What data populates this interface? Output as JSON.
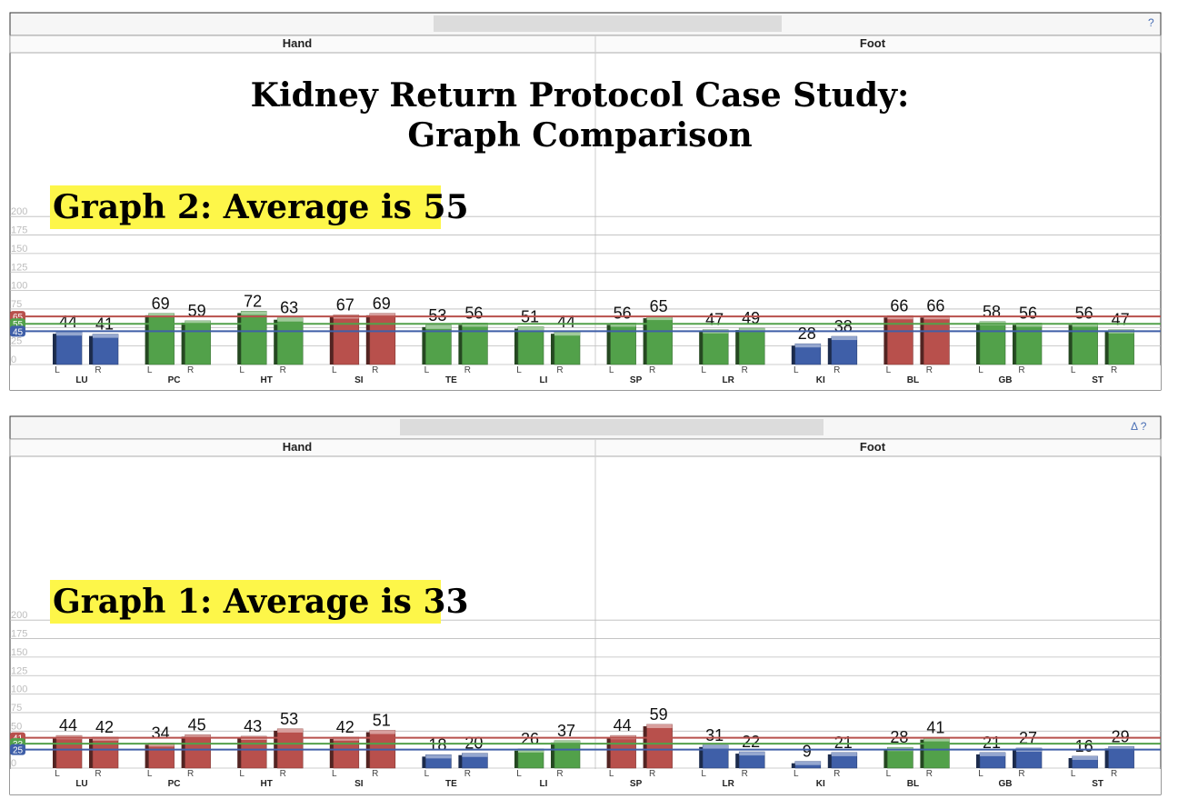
{
  "title_line1": "Kidney Return Protocol Case Study:",
  "title_line2": "Graph Comparison",
  "colors": {
    "red": "#b8504c",
    "green": "#52a14a",
    "blue": "#3f5fa8"
  },
  "chart_data": [
    {
      "type": "bar",
      "label": "Graph 2: Average is 55",
      "controls": "?",
      "sections": [
        "Hand",
        "Foot"
      ],
      "y_ticks": [
        0,
        25,
        50,
        75,
        100,
        125,
        150,
        175,
        200
      ],
      "ylim": [
        0,
        200
      ],
      "categories": [
        "LU",
        "PC",
        "HT",
        "SI",
        "TE",
        "LI",
        "SP",
        "LR",
        "KI",
        "BL",
        "GB",
        "ST"
      ],
      "side_labels": [
        "L",
        "R"
      ],
      "series": [
        {
          "name": "L",
          "values": [
            44,
            69,
            72,
            67,
            53,
            51,
            56,
            47,
            28,
            66,
            58,
            56
          ],
          "colors": [
            "blue",
            "green",
            "green",
            "red",
            "green",
            "green",
            "green",
            "green",
            "blue",
            "red",
            "green",
            "green"
          ]
        },
        {
          "name": "R",
          "values": [
            41,
            59,
            63,
            69,
            56,
            44,
            65,
            49,
            38,
            66,
            56,
            47
          ],
          "colors": [
            "blue",
            "green",
            "green",
            "red",
            "green",
            "green",
            "green",
            "green",
            "blue",
            "red",
            "green",
            "green"
          ]
        }
      ],
      "reference_lines": [
        {
          "value": 65,
          "label": "65",
          "color": "red"
        },
        {
          "value": 55,
          "label": "55",
          "color": "green"
        },
        {
          "value": 45,
          "label": "45",
          "color": "blue"
        }
      ]
    },
    {
      "type": "bar",
      "label": "Graph 1: Average is 33",
      "controls": "Δ ?",
      "sections": [
        "Hand",
        "Foot"
      ],
      "y_ticks": [
        0,
        25,
        50,
        75,
        100,
        125,
        150,
        175,
        200
      ],
      "ylim": [
        0,
        200
      ],
      "categories": [
        "LU",
        "PC",
        "HT",
        "SI",
        "TE",
        "LI",
        "SP",
        "LR",
        "KI",
        "BL",
        "GB",
        "ST"
      ],
      "side_labels": [
        "L",
        "R"
      ],
      "series": [
        {
          "name": "L",
          "values": [
            44,
            34,
            43,
            42,
            18,
            26,
            44,
            31,
            9,
            28,
            21,
            16
          ],
          "colors": [
            "red",
            "red",
            "red",
            "red",
            "blue",
            "green",
            "red",
            "blue",
            "blue",
            "green",
            "blue",
            "blue"
          ]
        },
        {
          "name": "R",
          "values": [
            42,
            45,
            53,
            51,
            20,
            37,
            59,
            22,
            21,
            41,
            27,
            29
          ],
          "colors": [
            "red",
            "red",
            "red",
            "red",
            "blue",
            "green",
            "red",
            "blue",
            "blue",
            "green",
            "blue",
            "blue"
          ]
        }
      ],
      "reference_lines": [
        {
          "value": 41,
          "label": "41",
          "color": "red"
        },
        {
          "value": 33,
          "label": "33",
          "color": "green"
        },
        {
          "value": 25,
          "label": "25",
          "color": "blue"
        }
      ]
    }
  ]
}
